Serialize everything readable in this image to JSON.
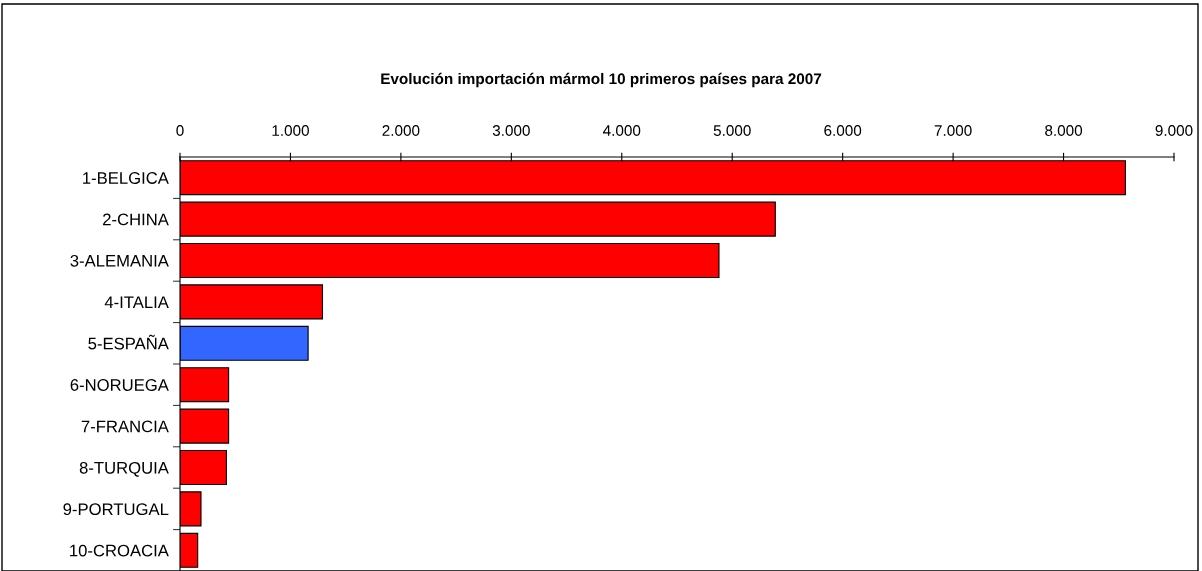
{
  "chart_data": {
    "type": "bar",
    "orientation": "horizontal",
    "title": "Evolución importación mármol 10 primeros países para 2007",
    "categories": [
      "1-BELGICA",
      "2-CHINA",
      "3-ALEMANIA",
      "4-ITALIA",
      "5-ESPAÑA",
      "6-NORUEGA",
      "7-FRANCIA",
      "8-TURQUIA",
      "9-PORTUGAL",
      "10-CROACIA"
    ],
    "values": [
      8560,
      5390,
      4880,
      1290,
      1160,
      440,
      440,
      420,
      190,
      160
    ],
    "colors": [
      "#ff0000",
      "#ff0000",
      "#ff0000",
      "#ff0000",
      "#3366ff",
      "#ff0000",
      "#ff0000",
      "#ff0000",
      "#ff0000",
      "#ff0000"
    ],
    "xlim": [
      0,
      9000
    ],
    "xticks": [
      {
        "value": 0,
        "label": "0"
      },
      {
        "value": 1000,
        "label": "1.000"
      },
      {
        "value": 2000,
        "label": "2.000"
      },
      {
        "value": 3000,
        "label": "3.000"
      },
      {
        "value": 4000,
        "label": "4.000"
      },
      {
        "value": 5000,
        "label": "5.000"
      },
      {
        "value": 6000,
        "label": "6.000"
      },
      {
        "value": 7000,
        "label": "7.000"
      },
      {
        "value": 8000,
        "label": "8.000"
      },
      {
        "value": 9000,
        "label": "9.000"
      }
    ],
    "grid": false
  }
}
